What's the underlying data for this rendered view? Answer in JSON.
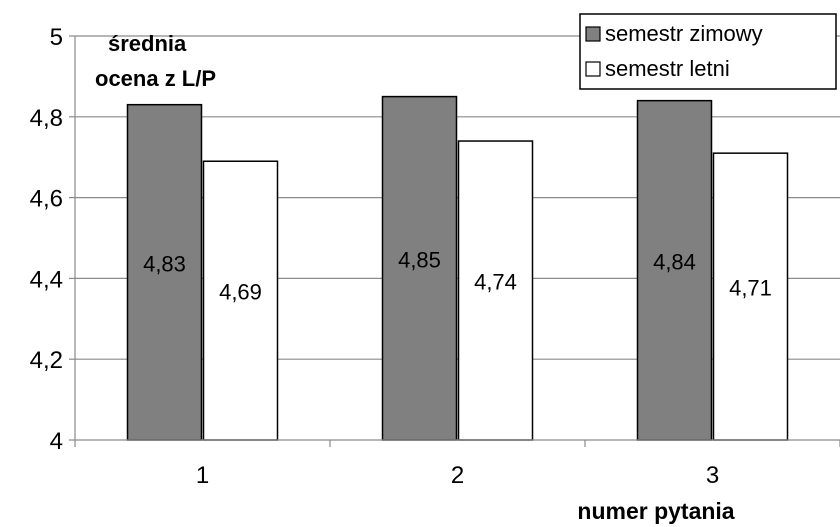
{
  "chart_data": {
    "type": "bar",
    "categories": [
      "1",
      "2",
      "3"
    ],
    "series": [
      {
        "name": "semestr zimowy",
        "values": [
          4.83,
          4.85,
          4.84
        ],
        "color": "#808080"
      },
      {
        "name": "semestr letni",
        "values": [
          4.69,
          4.74,
          4.71
        ],
        "color": "#ffffff"
      }
    ],
    "data_labels": [
      [
        "4,83",
        "4,85",
        "4,84"
      ],
      [
        "4,69",
        "4,74",
        "4,71"
      ]
    ],
    "ylabel": "średnia ocena z L/P",
    "ylabel_lines": [
      "średnia",
      "ocena z L/P"
    ],
    "xlabel": "numer pytania",
    "ylim": [
      4,
      5
    ],
    "yticks": [
      4,
      4.2,
      4.4,
      4.6,
      4.8,
      5
    ],
    "ytick_labels": [
      "4",
      "4,2",
      "4,4",
      "4,6",
      "4,8",
      "5"
    ],
    "grid": true,
    "legend_position": "top-right"
  }
}
